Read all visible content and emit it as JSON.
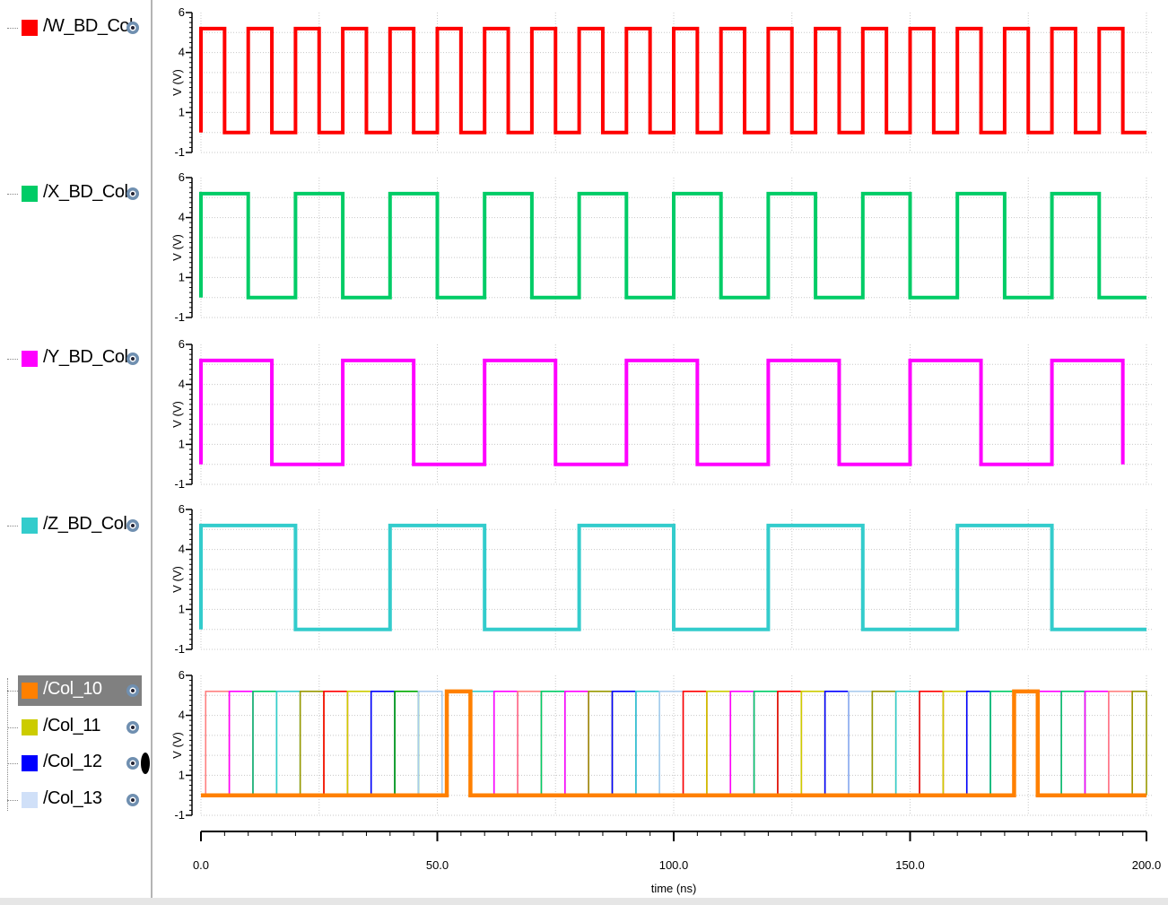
{
  "signals": [
    {
      "name": "/W_BD_Col",
      "color": "#ff0000",
      "icon": "eye-icon"
    },
    {
      "name": "/X_BD_Col",
      "color": "#00cc66",
      "icon": "eye-icon"
    },
    {
      "name": "/Y_BD_Col",
      "color": "#ff00ff",
      "icon": "eye-icon"
    },
    {
      "name": "/Z_BD_Col",
      "color": "#33cccc",
      "icon": "eye-icon"
    }
  ],
  "bus_group": [
    {
      "name": "/Col_10",
      "color": "#ff8000",
      "selected": true,
      "icon": "eye-icon"
    },
    {
      "name": "/Col_11",
      "color": "#cccc00",
      "icon": "eye-icon"
    },
    {
      "name": "/Col_12",
      "color": "#0000ff",
      "icon": "eye-icon"
    },
    {
      "name": "/Col_13",
      "color": "#d0e0f8",
      "icon": "eye-icon"
    }
  ],
  "x_axis": {
    "label": "time (ns)",
    "ticks": [
      "0.0",
      "50.0",
      "100.0",
      "150.0",
      "200.0"
    ]
  },
  "y_axis": {
    "label": "V (V)",
    "ticks": [
      "6",
      "4",
      "1",
      "-1"
    ]
  },
  "chart_data": {
    "type": "line",
    "x_range": [
      0,
      200
    ],
    "y_range": [
      -1,
      6
    ],
    "x_unit": "ns",
    "y_unit": "V",
    "grid": true,
    "panels": [
      {
        "signal": "/W_BD_Col",
        "period_ns": 10,
        "high_v": 5.2,
        "low_v": 0,
        "first_level": "high",
        "x_start": 0,
        "x_end": 200
      },
      {
        "signal": "/X_BD_Col",
        "period_ns": 20,
        "high_v": 5.2,
        "low_v": 0,
        "first_level": "high",
        "x_start": 0,
        "x_end": 200
      },
      {
        "signal": "/Y_BD_Col",
        "period_ns": 30,
        "high_v": 5.2,
        "low_v": 0,
        "first_level": "high",
        "x_start": 0,
        "x_end": 200
      },
      {
        "signal": "/Z_BD_Col",
        "period_ns": 40,
        "high_v": 5.2,
        "low_v": 0,
        "first_level": "high",
        "x_start": 0,
        "x_end": 200
      }
    ],
    "col_panel": {
      "high_v": 5.2,
      "low_v": 0,
      "col_10_high_intervals": [
        [
          52,
          57
        ],
        [
          172,
          177
        ]
      ],
      "pulses": [
        {
          "start": 1,
          "end": 6,
          "color": "#ff8080"
        },
        {
          "start": 6,
          "end": 11,
          "color": "#ff00ff"
        },
        {
          "start": 11,
          "end": 16,
          "color": "#00cc66"
        },
        {
          "start": 16,
          "end": 21,
          "color": "#33cccc"
        },
        {
          "start": 21,
          "end": 26,
          "color": "#999900"
        },
        {
          "start": 26,
          "end": 31,
          "color": "#ff0000"
        },
        {
          "start": 31,
          "end": 36,
          "color": "#cccc00"
        },
        {
          "start": 36,
          "end": 41,
          "color": "#0000ff"
        },
        {
          "start": 41,
          "end": 46,
          "color": "#00aa00"
        },
        {
          "start": 46,
          "end": 51,
          "color": "#aaccee"
        },
        {
          "start": 57,
          "end": 62,
          "color": "#33cccc"
        },
        {
          "start": 62,
          "end": 67,
          "color": "#ff00ff"
        },
        {
          "start": 67,
          "end": 72,
          "color": "#ff8080"
        },
        {
          "start": 72,
          "end": 77,
          "color": "#00cc66"
        },
        {
          "start": 77,
          "end": 82,
          "color": "#ff00ff"
        },
        {
          "start": 82,
          "end": 87,
          "color": "#999900"
        },
        {
          "start": 87,
          "end": 92,
          "color": "#0000ff"
        },
        {
          "start": 92,
          "end": 97,
          "color": "#33cccc"
        },
        {
          "start": 97,
          "end": 102,
          "color": "#aaccee"
        },
        {
          "start": 102,
          "end": 107,
          "color": "#ff0000"
        },
        {
          "start": 107,
          "end": 112,
          "color": "#cccc00"
        },
        {
          "start": 112,
          "end": 117,
          "color": "#ff00ff"
        },
        {
          "start": 117,
          "end": 122,
          "color": "#00cc66"
        },
        {
          "start": 122,
          "end": 127,
          "color": "#ff0000"
        },
        {
          "start": 127,
          "end": 132,
          "color": "#cccc00"
        },
        {
          "start": 132,
          "end": 137,
          "color": "#0000ff"
        },
        {
          "start": 137,
          "end": 142,
          "color": "#aaccee"
        },
        {
          "start": 142,
          "end": 147,
          "color": "#999900"
        },
        {
          "start": 147,
          "end": 152,
          "color": "#33cccc"
        },
        {
          "start": 152,
          "end": 157,
          "color": "#ff0000"
        },
        {
          "start": 157,
          "end": 162,
          "color": "#cccc00"
        },
        {
          "start": 162,
          "end": 167,
          "color": "#0000ff"
        },
        {
          "start": 167,
          "end": 172,
          "color": "#00cc66"
        },
        {
          "start": 177,
          "end": 182,
          "color": "#ff00ff"
        },
        {
          "start": 182,
          "end": 187,
          "color": "#00cc66"
        },
        {
          "start": 187,
          "end": 192,
          "color": "#ff00ff"
        },
        {
          "start": 192,
          "end": 197,
          "color": "#ff8080"
        },
        {
          "start": 197,
          "end": 200,
          "color": "#999900"
        }
      ]
    }
  }
}
